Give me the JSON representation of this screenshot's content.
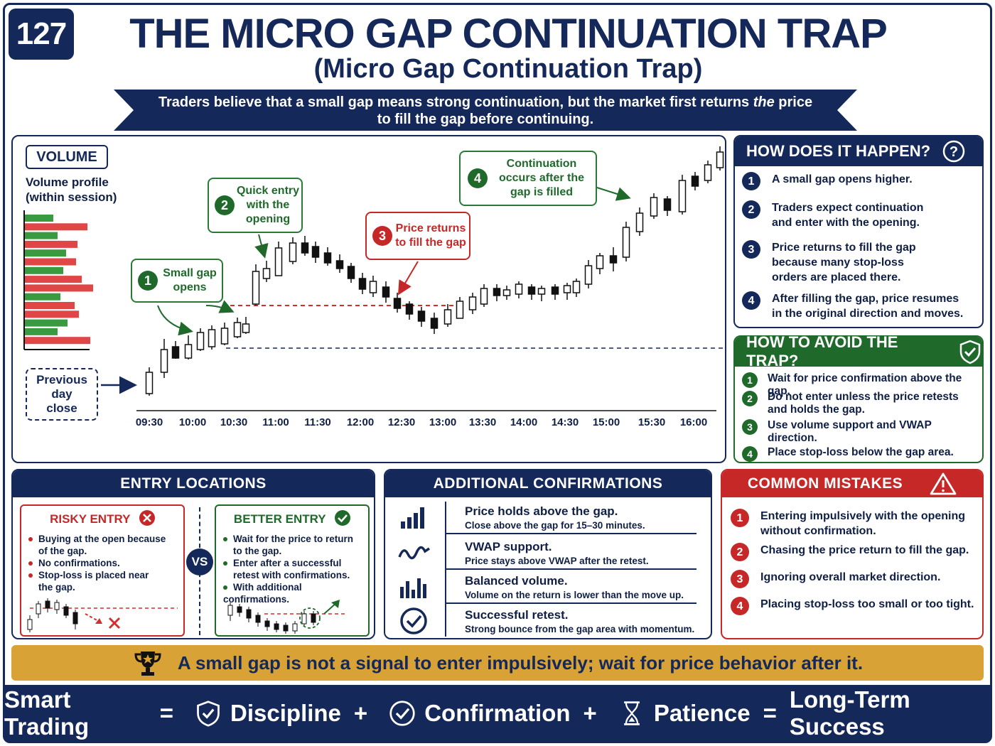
{
  "header": {
    "badge": "127",
    "title": "THE MICRO GAP CONTINUATION TRAP",
    "subtitle": "(Micro Gap Continuation Trap)",
    "banner_line1": "Traders believe that a small gap means strong continuation, but the market first returns the price",
    "banner_line2": "to fill the gap before continuing."
  },
  "chart": {
    "volume_label": "VOLUME",
    "volume_sub1": "Volume profile",
    "volume_sub2": "(within session)",
    "prev_close": [
      "Previous",
      "day",
      "close"
    ],
    "callouts": {
      "c1": {
        "num": "1",
        "text": [
          "Small gap",
          "opens"
        ]
      },
      "c2": {
        "num": "2",
        "text": [
          "Quick entry",
          "with the",
          "opening"
        ]
      },
      "c3": {
        "num": "3",
        "text": [
          "Price returns",
          "to fill the gap"
        ]
      },
      "c4": {
        "num": "4",
        "text": [
          "Continuation",
          "occurs after the",
          "gap is filled"
        ]
      }
    },
    "time_labels": [
      "09:30",
      "10:00",
      "10:30",
      "11:00",
      "11:30",
      "12:00",
      "12:30",
      "13:00",
      "13:30",
      "14:00",
      "14:30",
      "15:00",
      "15:30",
      "16:00"
    ],
    "colors": {
      "up": "#ffffff",
      "down": "#111111",
      "gap_line": "#d32f2f",
      "prev_close_line": "#14285a",
      "vol_green": "#3a9a3f",
      "vol_red": "#e04646"
    }
  },
  "how": {
    "title": "HOW DOES IT HAPPEN?",
    "items": [
      {
        "num": "1",
        "text": [
          "A small gap opens higher."
        ]
      },
      {
        "num": "2",
        "text": [
          "Traders expect continuation",
          "and enter with the opening."
        ]
      },
      {
        "num": "3",
        "text": [
          "Price returns to fill the gap",
          "because many stop-loss",
          "orders are placed there."
        ]
      },
      {
        "num": "4",
        "text": [
          "After filling the gap, price resumes",
          "in the original direction and moves."
        ]
      }
    ]
  },
  "avoid": {
    "title": "HOW TO AVOID THE TRAP?",
    "items": [
      {
        "num": "1",
        "text": [
          "Wait for price confirmation above the gap."
        ]
      },
      {
        "num": "2",
        "text": [
          "Do not enter unless the price retests",
          "and holds the gap."
        ]
      },
      {
        "num": "3",
        "text": [
          "Use volume support and VWAP",
          "direction."
        ]
      },
      {
        "num": "4",
        "text": [
          "Place stop-loss below the gap area."
        ]
      }
    ]
  },
  "entry": {
    "title": "ENTRY LOCATIONS",
    "risky_title": "RISKY ENTRY",
    "risky_items": [
      [
        "Buying at the open because",
        "of the gap."
      ],
      [
        "No confirmations."
      ],
      [
        "Stop-loss is placed near",
        "the gap."
      ]
    ],
    "vs": "VS",
    "better_title": "BETTER ENTRY",
    "better_items": [
      [
        "Wait for the price to return",
        "to the gap."
      ],
      [
        "Enter after a successful",
        "retest with confirmations."
      ],
      [
        "With additional confirmations."
      ]
    ]
  },
  "confirmations": {
    "title": "ADDITIONAL CONFIRMATIONS",
    "items": [
      {
        "icon": "bar-chart-icon",
        "title": "Price holds above the gap.",
        "desc": "Close above the gap for 15–30 minutes."
      },
      {
        "icon": "wave-icon",
        "title": "VWAP support.",
        "desc": "Price stays above VWAP after the retest."
      },
      {
        "icon": "volume-bars-icon",
        "title": "Balanced volume.",
        "desc": "Volume on the return is lower than the move up."
      },
      {
        "icon": "check-circle-icon",
        "title": "Successful retest.",
        "desc": "Strong bounce from the gap area with momentum."
      }
    ]
  },
  "mistakes": {
    "title": "COMMON MISTAKES",
    "items": [
      {
        "num": "1",
        "text": [
          "Entering impulsively with the opening",
          "without confirmation."
        ]
      },
      {
        "num": "2",
        "text": [
          "Chasing the price return to fill the gap."
        ]
      },
      {
        "num": "3",
        "text": [
          "Ignoring overall market direction."
        ]
      },
      {
        "num": "4",
        "text": [
          "Placing stop-loss too small or too tight."
        ]
      }
    ]
  },
  "tip": "A small gap is not a signal to enter impulsively; wait for price behavior after it.",
  "footer": {
    "w1": "Smart Trading",
    "eq1": "=",
    "w2": "Discipline",
    "plus1": "+",
    "w3": "Confirmation",
    "plus2": "+",
    "w4": "Patience",
    "eq2": "=",
    "w5": "Long-Term Success"
  }
}
